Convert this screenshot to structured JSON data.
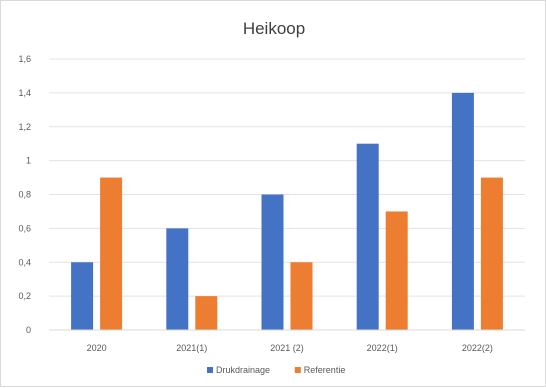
{
  "chart_data": {
    "type": "bar",
    "title": "Heikoop",
    "xlabel": "",
    "ylabel": "",
    "categories": [
      "2020",
      "2021(1)",
      "2021 (2)",
      "2022(1)",
      "2022(2)"
    ],
    "series": [
      {
        "name": "Drukdrainage",
        "color": "#4472c4",
        "values": [
          0.4,
          0.6,
          0.8,
          1.1,
          1.4
        ]
      },
      {
        "name": "Referentie",
        "color": "#ed7d31",
        "values": [
          0.9,
          0.2,
          0.4,
          0.7,
          0.9
        ]
      }
    ],
    "ylim": [
      0,
      1.6
    ],
    "yticks": [
      0,
      0.2,
      0.4,
      0.6,
      0.8,
      1,
      1.2,
      1.4,
      1.6
    ],
    "ytick_labels": [
      "0",
      "0,2",
      "0,4",
      "0,6",
      "0,8",
      "1",
      "1,2",
      "1,4",
      "1,6"
    ],
    "grid": true,
    "legend_position": "bottom-center"
  }
}
